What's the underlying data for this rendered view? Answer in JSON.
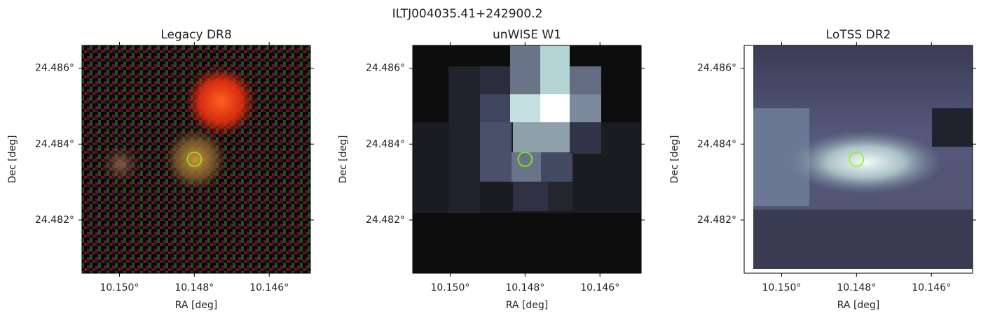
{
  "title": "ILTJ004035.41+242900.2",
  "chart_data": [
    {
      "type": "image",
      "title": "Legacy DR8",
      "xlabel": "RA [deg]",
      "ylabel": "Dec [deg]",
      "xlim": [
        10.151,
        10.1449
      ],
      "ylim": [
        24.4806,
        24.4866
      ],
      "xticks": [
        {
          "value": 10.15,
          "label": "10.150°"
        },
        {
          "value": 10.148,
          "label": "10.148°"
        },
        {
          "value": 10.146,
          "label": "10.146°"
        }
      ],
      "yticks": [
        {
          "value": 24.482,
          "label": "24.482°"
        },
        {
          "value": 24.484,
          "label": "24.484°"
        },
        {
          "value": 24.486,
          "label": "24.486°"
        }
      ],
      "marker": {
        "x": 10.148,
        "y": 24.4836,
        "color": "#7fff00"
      }
    },
    {
      "type": "image",
      "title": "unWISE W1",
      "xlabel": "RA [deg]",
      "ylabel": "Dec [deg]",
      "xlim": [
        10.151,
        10.1449
      ],
      "ylim": [
        24.4806,
        24.4866
      ],
      "xticks": [
        {
          "value": 10.15,
          "label": "10.150°"
        },
        {
          "value": 10.148,
          "label": "10.148°"
        },
        {
          "value": 10.146,
          "label": "10.146°"
        }
      ],
      "yticks": [
        {
          "value": 24.482,
          "label": "24.482°"
        },
        {
          "value": 24.484,
          "label": "24.484°"
        },
        {
          "value": 24.486,
          "label": "24.486°"
        }
      ],
      "marker": {
        "x": 10.148,
        "y": 24.4836,
        "color": "#7fff00"
      }
    },
    {
      "type": "image",
      "title": "LoTSS DR2",
      "xlabel": "RA [deg]",
      "ylabel": "Dec [deg]",
      "xlim": [
        10.151,
        10.1449
      ],
      "ylim": [
        24.4806,
        24.4866
      ],
      "xticks": [
        {
          "value": 10.15,
          "label": "10.150°"
        },
        {
          "value": 10.148,
          "label": "10.148°"
        },
        {
          "value": 10.146,
          "label": "10.146°"
        }
      ],
      "yticks": [
        {
          "value": 24.482,
          "label": "24.482°"
        },
        {
          "value": 24.484,
          "label": "24.484°"
        },
        {
          "value": 24.486,
          "label": "24.486°"
        }
      ],
      "marker": {
        "x": 10.148,
        "y": 24.4836,
        "color": "#7fff00"
      }
    }
  ]
}
